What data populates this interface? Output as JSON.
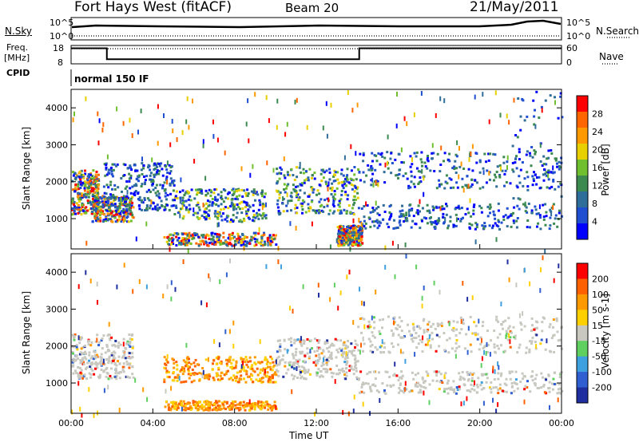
{
  "header": {
    "station": "Fort Hays West (fitACF)",
    "beam": "Beam 20",
    "date": "21/May/2011"
  },
  "labels": {
    "nsky": "N.Sky",
    "nsearch": "N.Search",
    "freq_line1": "Freq.",
    "freq_line2": "[MHz]",
    "nave": "Nave",
    "cpid": "CPID",
    "cpid_value": "normal 150 IF"
  },
  "noise_panel": {
    "left_ticks": [
      "10^5",
      "10^0"
    ],
    "right_ticks": [
      "10^5",
      "10^0"
    ]
  },
  "freq_panel": {
    "left_ticks": [
      "18",
      "8"
    ],
    "right_ticks": [
      "60",
      "0"
    ],
    "segments": [
      {
        "start_hour": 0,
        "end_hour": 1.75,
        "freq_mhz": 16.5
      },
      {
        "start_hour": 1.75,
        "end_hour": 14.1,
        "freq_mhz": 10.5
      },
      {
        "start_hour": 14.1,
        "end_hour": 24,
        "freq_mhz": 16.5
      }
    ],
    "ylim": [
      8,
      18
    ]
  },
  "chart_data": [
    {
      "type": "heatmap",
      "name": "power",
      "xlabel": "Time UT",
      "ylabel": "Slant Range [km]",
      "xlim": [
        0,
        24
      ],
      "ylim": [
        180,
        4500
      ],
      "x_ticks": [
        "00:00",
        "04:00",
        "08:00",
        "12:00",
        "16:00",
        "20:00",
        "00:00"
      ],
      "y_ticks": [
        "1000",
        "2000",
        "3000",
        "4000"
      ],
      "colorbar_title": "Power [dB]",
      "colorbar_ticks": [
        "28",
        "24",
        "20",
        "16",
        "12",
        "8",
        "4"
      ],
      "colorbar_colors": [
        "#0000ff",
        "#1f4fd0",
        "#2f6d9a",
        "#3d8a50",
        "#6fbf2f",
        "#e8d000",
        "#ff9900",
        "#ff6600",
        "#ff0000"
      ],
      "regions": [
        {
          "t0": 0.0,
          "t1": 1.3,
          "r0": 1100,
          "r1": 2300,
          "level": "high"
        },
        {
          "t0": 1.0,
          "t1": 3.0,
          "r0": 900,
          "r1": 1600,
          "level": "high"
        },
        {
          "t0": 1.5,
          "t1": 5.0,
          "r0": 1200,
          "r1": 2500,
          "level": "low"
        },
        {
          "t0": 5.0,
          "t1": 9.5,
          "r0": 900,
          "r1": 1800,
          "level": "mid"
        },
        {
          "t0": 4.5,
          "t1": 10.0,
          "r0": 250,
          "r1": 600,
          "level": "high"
        },
        {
          "t0": 10.0,
          "t1": 14.0,
          "r0": 1100,
          "r1": 2400,
          "level": "mid"
        },
        {
          "t0": 13.0,
          "t1": 14.2,
          "r0": 250,
          "r1": 800,
          "level": "high"
        },
        {
          "t0": 14.0,
          "t1": 24.0,
          "r0": 1800,
          "r1": 2800,
          "level": "low"
        },
        {
          "t0": 14.0,
          "t1": 24.0,
          "r0": 700,
          "r1": 1400,
          "level": "low"
        },
        {
          "t0": 21.5,
          "t1": 24.0,
          "r0": 1000,
          "r1": 4500,
          "level": "sparse"
        }
      ]
    },
    {
      "type": "heatmap",
      "name": "velocity",
      "xlabel": "Time UT",
      "ylabel": "Slant Range [km]",
      "xlim": [
        0,
        24
      ],
      "ylim": [
        180,
        4500
      ],
      "x_ticks": [
        "00:00",
        "04:00",
        "08:00",
        "12:00",
        "16:00",
        "20:00",
        "00:00"
      ],
      "y_ticks": [
        "1000",
        "2000",
        "3000",
        "4000"
      ],
      "colorbar_title": "Velocity [m s-1]",
      "colorbar_ticks": [
        "200",
        "100",
        "50",
        "15",
        "-15",
        "-50",
        "-100",
        "-200"
      ],
      "colorbar_colors": [
        "#1f2fa0",
        "#2f5fd0",
        "#3fa0e0",
        "#5fcf5f",
        "#c8c8c0",
        "#ffd000",
        "#ff9900",
        "#ff6000",
        "#ff0000"
      ],
      "regions": [
        {
          "t0": 0.0,
          "t1": 3.0,
          "r0": 1100,
          "r1": 2300,
          "level": "gray"
        },
        {
          "t0": 4.5,
          "t1": 10.0,
          "r0": 1000,
          "r1": 1700,
          "level": "orange"
        },
        {
          "t0": 4.5,
          "t1": 10.0,
          "r0": 250,
          "r1": 500,
          "level": "orange"
        },
        {
          "t0": 10.0,
          "t1": 14.0,
          "r0": 1100,
          "r1": 2200,
          "level": "gray"
        },
        {
          "t0": 14.0,
          "t1": 24.0,
          "r0": 1800,
          "r1": 2800,
          "level": "gray"
        },
        {
          "t0": 14.0,
          "t1": 24.0,
          "r0": 700,
          "r1": 1300,
          "level": "gray"
        }
      ]
    }
  ]
}
